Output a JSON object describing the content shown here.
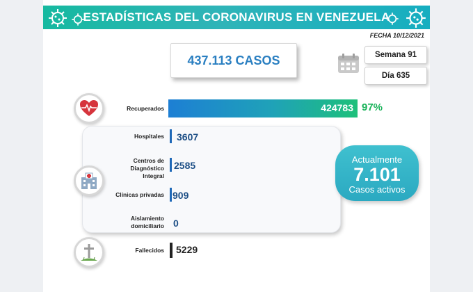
{
  "header": {
    "title": "ESTADÍSTICAS DEL CORONAVIRUS EN VENEZUELA"
  },
  "date": "FECHA 10/12/2021",
  "total_cases": "437.113 CASOS",
  "week": "Semana 91",
  "day": "Día 635",
  "recovered": {
    "label": "Recuperados",
    "value": "424783",
    "percent": "97%"
  },
  "hospitals": {
    "label": "Hospitales",
    "value": "3607"
  },
  "diagnostic_centers": {
    "label_line1": "Centros de",
    "label_line2": "Diagnóstico Integral",
    "value": "2585"
  },
  "private_clinics": {
    "label": "Clínicas privadas",
    "value": "909"
  },
  "home_isolation": {
    "label_line1": "Aislamiento",
    "label_line2": "domiciliario",
    "value": "0"
  },
  "active": {
    "line1": "Actualmente",
    "value": "7.101",
    "line3": "Casos activos"
  },
  "deaths": {
    "label": "Fallecidos",
    "value": "5229"
  },
  "colors": {
    "header": "#1fb6ae",
    "cases_text": "#2a7fc1",
    "recovered_pct": "#1ab35a",
    "active_bubble": "#35b4c8",
    "values": "#1d4f86"
  },
  "icons": [
    "virus-icon",
    "calendar-icon",
    "heart-pulse-icon",
    "hospital-icon",
    "cross-grave-icon"
  ]
}
